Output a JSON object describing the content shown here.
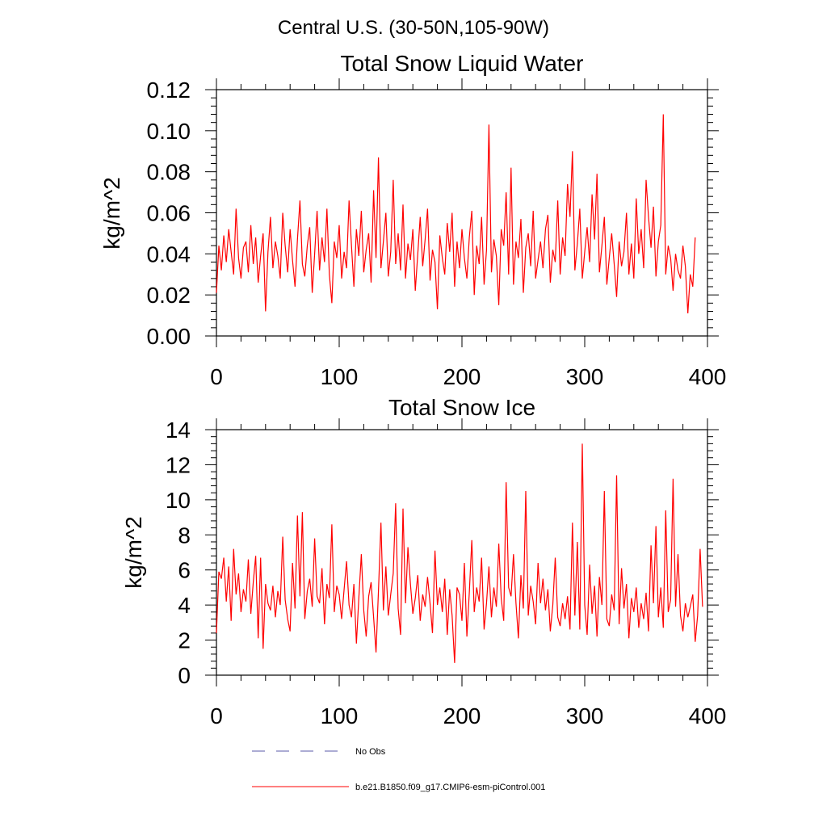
{
  "figure_title": "Central U.S. (30-50N,105-90W)",
  "legend": {
    "obs_label": "No Obs",
    "model_label": "b.e21.B1850.f09_g17.CMIP6-esm-piControl.001",
    "obs_color": "#5a5aa8",
    "model_color": "#ff0000"
  },
  "chart_data": [
    {
      "type": "line",
      "title": "Total Snow Liquid Water",
      "xlabel": "",
      "ylabel": "kg/m^2",
      "xlim": [
        0,
        400
      ],
      "ylim": [
        0,
        0.12
      ],
      "x_ticks": [
        0,
        100,
        200,
        300,
        400
      ],
      "x_tick_labels": [
        "0",
        "100",
        "200",
        "300",
        "400"
      ],
      "y_ticks": [
        0,
        0.02,
        0.04,
        0.06,
        0.08,
        0.1,
        0.12
      ],
      "y_tick_labels": [
        "0.00",
        "0.02",
        "0.04",
        "0.06",
        "0.08",
        "0.10",
        "0.12"
      ],
      "series": [
        {
          "name": "b.e21.B1850.f09_g17.CMIP6-esm-piControl.001",
          "color": "#ff0000",
          "x_start": 0,
          "x_step": 2,
          "values": [
            0.021,
            0.044,
            0.032,
            0.049,
            0.036,
            0.052,
            0.041,
            0.03,
            0.062,
            0.038,
            0.028,
            0.043,
            0.046,
            0.031,
            0.054,
            0.035,
            0.048,
            0.026,
            0.039,
            0.05,
            0.012,
            0.041,
            0.058,
            0.033,
            0.046,
            0.039,
            0.028,
            0.06,
            0.044,
            0.031,
            0.052,
            0.037,
            0.024,
            0.047,
            0.066,
            0.035,
            0.029,
            0.044,
            0.053,
            0.021,
            0.04,
            0.061,
            0.032,
            0.048,
            0.036,
            0.062,
            0.03,
            0.016,
            0.046,
            0.038,
            0.054,
            0.028,
            0.041,
            0.033,
            0.066,
            0.044,
            0.024,
            0.052,
            0.039,
            0.061,
            0.031,
            0.042,
            0.05,
            0.026,
            0.071,
            0.038,
            0.087,
            0.033,
            0.046,
            0.06,
            0.029,
            0.041,
            0.076,
            0.035,
            0.05,
            0.032,
            0.064,
            0.028,
            0.045,
            0.037,
            0.052,
            0.022,
            0.04,
            0.058,
            0.034,
            0.047,
            0.062,
            0.027,
            0.042,
            0.036,
            0.013,
            0.049,
            0.038,
            0.03,
            0.055,
            0.041,
            0.06,
            0.024,
            0.046,
            0.033,
            0.052,
            0.038,
            0.028,
            0.048,
            0.061,
            0.02,
            0.044,
            0.035,
            0.058,
            0.025,
            0.042,
            0.103,
            0.031,
            0.047,
            0.039,
            0.015,
            0.052,
            0.044,
            0.07,
            0.03,
            0.082,
            0.025,
            0.046,
            0.038,
            0.057,
            0.021,
            0.043,
            0.05,
            0.034,
            0.061,
            0.028,
            0.037,
            0.046,
            0.033,
            0.052,
            0.059,
            0.026,
            0.042,
            0.036,
            0.066,
            0.03,
            0.048,
            0.039,
            0.074,
            0.058,
            0.09,
            0.032,
            0.045,
            0.062,
            0.028,
            0.041,
            0.053,
            0.036,
            0.069,
            0.047,
            0.079,
            0.031,
            0.044,
            0.058,
            0.025,
            0.038,
            0.05,
            0.035,
            0.019,
            0.046,
            0.034,
            0.041,
            0.06,
            0.03,
            0.045,
            0.028,
            0.067,
            0.04,
            0.052,
            0.033,
            0.076,
            0.058,
            0.043,
            0.063,
            0.029,
            0.046,
            0.054,
            0.108,
            0.03,
            0.044,
            0.038,
            0.022,
            0.04,
            0.032,
            0.028,
            0.044,
            0.034,
            0.011,
            0.03,
            0.024,
            0.048
          ]
        }
      ]
    },
    {
      "type": "line",
      "title": "Total Snow Ice",
      "xlabel": "",
      "ylabel": "kg/m^2",
      "xlim": [
        0,
        400
      ],
      "ylim": [
        0,
        14
      ],
      "x_ticks": [
        0,
        100,
        200,
        300,
        400
      ],
      "x_tick_labels": [
        "0",
        "100",
        "200",
        "300",
        "400"
      ],
      "y_ticks": [
        0,
        2,
        4,
        6,
        8,
        10,
        12,
        14
      ],
      "y_tick_labels": [
        "0",
        "2",
        "4",
        "6",
        "8",
        "10",
        "12",
        "14"
      ],
      "series": [
        {
          "name": "b.e21.B1850.f09_g17.CMIP6-esm-piControl.001",
          "color": "#ff0000",
          "x_start": 0,
          "x_step": 2,
          "values": [
            2.4,
            5.9,
            5.5,
            6.7,
            4.2,
            6.2,
            3.1,
            7.2,
            4.6,
            5.8,
            3.6,
            4.9,
            4.2,
            6.6,
            3.5,
            5.3,
            6.8,
            2.1,
            6.7,
            1.5,
            5.2,
            4.1,
            3.7,
            5.1,
            3.3,
            4.8,
            4.0,
            7.9,
            4.3,
            3.2,
            2.5,
            6.4,
            3.8,
            9.1,
            4.5,
            9.3,
            3.2,
            4.8,
            5.5,
            3.9,
            7.8,
            4.5,
            4.1,
            6.1,
            2.9,
            5.2,
            4.4,
            8.6,
            3.6,
            5.1,
            4.6,
            3.2,
            4.9,
            6.5,
            4.0,
            3.3,
            5.2,
            1.8,
            4.4,
            6.9,
            3.7,
            2.2,
            4.5,
            5.3,
            3.3,
            1.3,
            4.8,
            8.7,
            3.7,
            6.2,
            3.4,
            4.6,
            5.8,
            9.8,
            3.8,
            2.3,
            9.5,
            4.1,
            7.3,
            5.2,
            3.5,
            4.4,
            5.7,
            3.1,
            4.6,
            3.9,
            5.6,
            4.1,
            2.4,
            7.1,
            4.0,
            5.0,
            3.6,
            5.5,
            2.3,
            4.9,
            3.4,
            0.7,
            5.0,
            4.6,
            3.1,
            6.4,
            2.2,
            4.7,
            7.7,
            3.6,
            5.0,
            4.2,
            6.7,
            2.6,
            4.1,
            6.2,
            3.3,
            5.0,
            3.9,
            7.5,
            4.4,
            3.1,
            11.0,
            5.0,
            4.5,
            6.9,
            4.1,
            2.1,
            5.7,
            3.8,
            10.5,
            3.4,
            5.1,
            4.2,
            2.9,
            6.4,
            4.1,
            5.5,
            3.7,
            4.9,
            2.5,
            4.0,
            6.7,
            3.3,
            2.8,
            4.1,
            3.2,
            4.5,
            2.6,
            8.7,
            3.4,
            7.6,
            2.6,
            13.2,
            4.0,
            2.3,
            6.3,
            3.5,
            5.1,
            2.2,
            5.6,
            4.0,
            10.5,
            3.2,
            2.8,
            4.6,
            3.7,
            11.4,
            2.9,
            6.1,
            3.8,
            5.2,
            2.1,
            4.4,
            3.6,
            5.0,
            2.7,
            4.1,
            3.2,
            4.7,
            2.5,
            7.4,
            4.1,
            8.5,
            3.3,
            5.0,
            2.7,
            9.4,
            3.6,
            4.3,
            11.2,
            3.9,
            6.9,
            3.4,
            2.5,
            4.1,
            3.3,
            3.9,
            4.6,
            1.9,
            3.4,
            7.2,
            3.9
          ]
        }
      ]
    }
  ]
}
